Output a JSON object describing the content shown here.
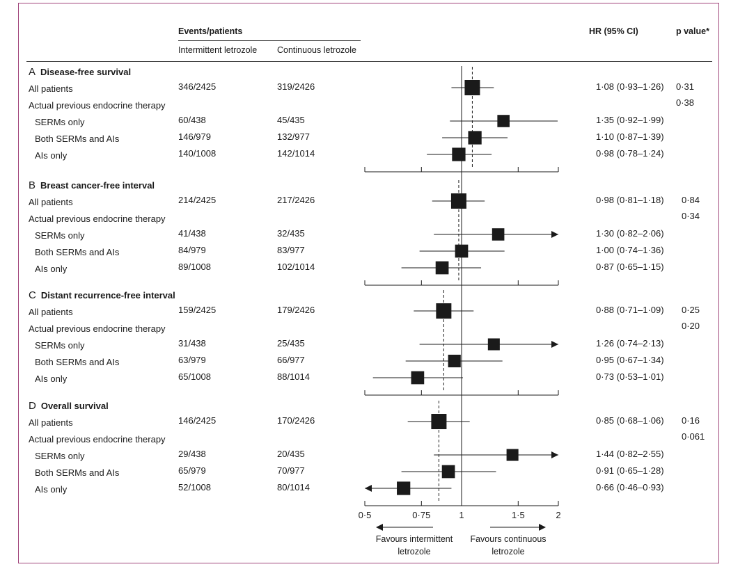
{
  "header": {
    "events_patients": "Events/patients",
    "col_intermittent": "Intermittent letrozole",
    "col_continuous": "Continuous letrozole",
    "col_hr": "HR (95% CI)",
    "col_p": "p value*"
  },
  "footer": {
    "favours_left": "Favours intermittent letrozole",
    "favours_right": "Favours continuous letrozole"
  },
  "chart_data": {
    "type": "forest",
    "x_scale": "log",
    "xlim": [
      0.5,
      2
    ],
    "x_ticks": [
      0.5,
      0.75,
      1,
      1.5,
      2
    ],
    "x_tick_labels": [
      "0·5",
      "0·75",
      "1",
      "1·5",
      "2"
    ],
    "reference_line": 1,
    "colors": {
      "marker": "#1a1a1a",
      "line": "#1a1a1a",
      "frame": "#a0437a"
    },
    "sections": [
      {
        "letter": "A",
        "title": "Disease-free survival",
        "dashed": 1.08,
        "rows": [
          {
            "label": "All patients",
            "intermittent": "346/2425",
            "continuous": "319/2426",
            "hr": 1.08,
            "lo": 0.93,
            "hi": 1.26,
            "hr_text": "1·08 (0·93–1·26)",
            "p": "0·31",
            "size": 1.0
          },
          {
            "label": "Actual previous endocrine therapy",
            "p": "0·38"
          },
          {
            "label": "SERMs only",
            "intermittent": "60/438",
            "continuous": "45/435",
            "hr": 1.35,
            "lo": 0.92,
            "hi": 1.99,
            "hr_text": "1·35 (0·92–1·99)",
            "size": 0.6
          },
          {
            "label": "Both SERMs and AIs",
            "intermittent": "146/979",
            "continuous": "132/977",
            "hr": 1.1,
            "lo": 0.87,
            "hi": 1.39,
            "hr_text": "1·10 (0·87–1·39)",
            "size": 0.75
          },
          {
            "label": "AIs only",
            "intermittent": "140/1008",
            "continuous": "142/1014",
            "hr": 0.98,
            "lo": 0.78,
            "hi": 1.24,
            "hr_text": "0·98 (0·78–1·24)",
            "size": 0.75
          }
        ]
      },
      {
        "letter": "B",
        "title": "Breast cancer-free interval",
        "dashed": 0.98,
        "rows": [
          {
            "label": "All patients",
            "intermittent": "214/2425",
            "continuous": "217/2426",
            "hr": 0.98,
            "lo": 0.81,
            "hi": 1.18,
            "hr_text": "0·98 (0·81–1·18)",
            "p": "0·84",
            "size": 1.0
          },
          {
            "label": "Actual previous endocrine therapy",
            "p": "0·34"
          },
          {
            "label": "SERMs only",
            "intermittent": "41/438",
            "continuous": "32/435",
            "hr": 1.3,
            "lo": 0.82,
            "hi": 2.06,
            "hr_text": "1·30 (0·82–2·06)",
            "size": 0.6
          },
          {
            "label": "Both SERMs and AIs",
            "intermittent": "84/979",
            "continuous": "83/977",
            "hr": 1.0,
            "lo": 0.74,
            "hi": 1.36,
            "hr_text": "1·00 (0·74–1·36)",
            "size": 0.7
          },
          {
            "label": "AIs only",
            "intermittent": "89/1008",
            "continuous": "102/1014",
            "hr": 0.87,
            "lo": 0.65,
            "hi": 1.15,
            "hr_text": "0·87 (0·65–1·15)",
            "size": 0.7
          }
        ]
      },
      {
        "letter": "C",
        "title": "Distant recurrence-free interval",
        "dashed": 0.88,
        "rows": [
          {
            "label": "All patients",
            "intermittent": "159/2425",
            "continuous": "179/2426",
            "hr": 0.88,
            "lo": 0.71,
            "hi": 1.09,
            "hr_text": "0·88 (0·71–1·09)",
            "p": "0·25",
            "size": 1.0
          },
          {
            "label": "Actual previous endocrine therapy",
            "p": "0·20"
          },
          {
            "label": "SERMs only",
            "intermittent": "31/438",
            "continuous": "25/435",
            "hr": 1.26,
            "lo": 0.74,
            "hi": 2.13,
            "hr_text": "1·26 (0·74–2·13)",
            "size": 0.55
          },
          {
            "label": "Both SERMs and AIs",
            "intermittent": "63/979",
            "continuous": "66/977",
            "hr": 0.95,
            "lo": 0.67,
            "hi": 1.34,
            "hr_text": "0·95 (0·67–1·34)",
            "size": 0.65
          },
          {
            "label": "AIs only",
            "intermittent": "65/1008",
            "continuous": "88/1014",
            "hr": 0.73,
            "lo": 0.53,
            "hi": 1.01,
            "hr_text": "0·73 (0·53–1·01)",
            "size": 0.7
          }
        ]
      },
      {
        "letter": "D",
        "title": "Overall survival",
        "dashed": 0.85,
        "rows": [
          {
            "label": "All patients",
            "intermittent": "146/2425",
            "continuous": "170/2426",
            "hr": 0.85,
            "lo": 0.68,
            "hi": 1.06,
            "hr_text": "0·85 (0·68–1·06)",
            "p": "0·16",
            "size": 1.0
          },
          {
            "label": "Actual previous endocrine therapy",
            "p": "0·061"
          },
          {
            "label": "SERMs only",
            "intermittent": "29/438",
            "continuous": "20/435",
            "hr": 1.44,
            "lo": 0.82,
            "hi": 2.55,
            "hr_text": "1·44 (0·82–2·55)",
            "size": 0.55
          },
          {
            "label": "Both SERMs and AIs",
            "intermittent": "65/979",
            "continuous": "70/977",
            "hr": 0.91,
            "lo": 0.65,
            "hi": 1.28,
            "hr_text": "0·91 (0·65–1·28)",
            "size": 0.7
          },
          {
            "label": "AIs only",
            "intermittent": "52/1008",
            "continuous": "80/1014",
            "hr": 0.66,
            "lo": 0.46,
            "hi": 0.93,
            "hr_text": "0·66 (0·46–0·93)",
            "size": 0.75
          }
        ]
      }
    ]
  }
}
